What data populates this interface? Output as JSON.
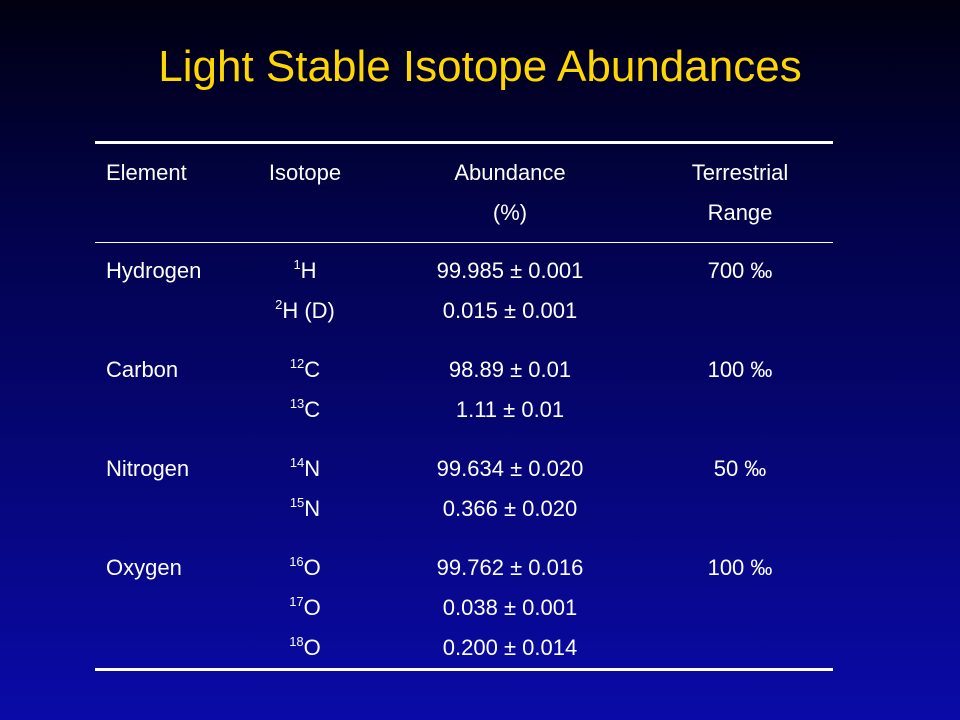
{
  "title": "Light Stable Isotope Abundances",
  "table": {
    "headers": {
      "element": "Element",
      "isotope": "Isotope",
      "abundance_1": "Abundance",
      "abundance_2": "(%)",
      "range_1": "Terrestrial",
      "range_2": "Range"
    },
    "rows": [
      {
        "element": "Hydrogen",
        "isotopes": [
          {
            "mass": "1",
            "symbol": "H"
          },
          {
            "mass": "2",
            "symbol": "H (D)"
          }
        ],
        "abundances": [
          "99.985 ± 0.001",
          "0.015 ± 0.001"
        ],
        "range": "700 ‰"
      },
      {
        "element": "Carbon",
        "isotopes": [
          {
            "mass": "12",
            "symbol": "C"
          },
          {
            "mass": "13",
            "symbol": "C"
          }
        ],
        "abundances": [
          "98.89 ± 0.01",
          "1.11 ± 0.01"
        ],
        "range": "100 ‰"
      },
      {
        "element": "Nitrogen",
        "isotopes": [
          {
            "mass": "14",
            "symbol": "N"
          },
          {
            "mass": "15",
            "symbol": "N"
          }
        ],
        "abundances": [
          "99.634 ± 0.020",
          "0.366 ± 0.020"
        ],
        "range": "50 ‰"
      },
      {
        "element": "Oxygen",
        "isotopes": [
          {
            "mass": "16",
            "symbol": "O"
          },
          {
            "mass": "17",
            "symbol": "O"
          },
          {
            "mass": "18",
            "symbol": "O"
          }
        ],
        "abundances": [
          "99.762 ± 0.016",
          "0.038 ± 0.001",
          "0.200 ± 0.014"
        ],
        "range": "100 ‰"
      }
    ]
  },
  "colors": {
    "title": "#ffd700",
    "text": "#ffffff",
    "background_top": "#000010",
    "background_bottom": "#0a0aa8"
  }
}
